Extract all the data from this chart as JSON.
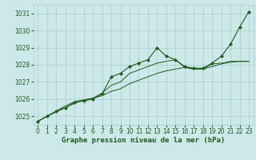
{
  "title": "Graphe pression niveau de la mer (hPa)",
  "bg_color": "#cce8e8",
  "grid_color": "#aacccc",
  "line_color": "#1e5c1e",
  "marker_color": "#1e5c1e",
  "xlim": [
    -0.5,
    23.5
  ],
  "ylim": [
    1024.5,
    1031.5
  ],
  "yticks": [
    1025,
    1026,
    1027,
    1028,
    1029,
    1030,
    1031
  ],
  "xticks": [
    0,
    1,
    2,
    3,
    4,
    5,
    6,
    7,
    8,
    9,
    10,
    11,
    12,
    13,
    14,
    15,
    16,
    17,
    18,
    19,
    20,
    21,
    22,
    23
  ],
  "series1_x": [
    0,
    1,
    2,
    3,
    4,
    5,
    6,
    7,
    8,
    9,
    10,
    11,
    12,
    13,
    14,
    15,
    16,
    17,
    18,
    19,
    20,
    21,
    22,
    23
  ],
  "series1_y": [
    1024.7,
    1025.0,
    1025.3,
    1025.5,
    1025.8,
    1025.9,
    1026.0,
    1026.3,
    1027.3,
    1027.5,
    1027.9,
    1028.1,
    1028.3,
    1029.0,
    1028.5,
    1028.3,
    1027.9,
    1027.8,
    1027.8,
    1028.1,
    1028.5,
    1029.2,
    1030.2,
    1031.1
  ],
  "series2_x": [
    0,
    1,
    2,
    3,
    4,
    5,
    6,
    7,
    8,
    9,
    10,
    11,
    12,
    13,
    14,
    15,
    16,
    17,
    18,
    19,
    20,
    21,
    22,
    23
  ],
  "series2_y": [
    1024.7,
    1025.0,
    1025.3,
    1025.6,
    1025.85,
    1025.95,
    1026.05,
    1026.35,
    1026.8,
    1027.0,
    1027.5,
    1027.7,
    1027.9,
    1028.1,
    1028.2,
    1028.3,
    1027.85,
    1027.75,
    1027.75,
    1028.05,
    1028.1,
    1028.2,
    1028.2,
    1028.2
  ],
  "series3_x": [
    0,
    1,
    2,
    3,
    4,
    5,
    6,
    7,
    8,
    9,
    10,
    11,
    12,
    13,
    14,
    15,
    16,
    17,
    18,
    19,
    20,
    21,
    22,
    23
  ],
  "series3_y": [
    1024.7,
    1025.0,
    1025.25,
    1025.5,
    1025.75,
    1025.95,
    1026.05,
    1026.2,
    1026.45,
    1026.6,
    1026.9,
    1027.1,
    1027.3,
    1027.5,
    1027.65,
    1027.75,
    1027.85,
    1027.75,
    1027.75,
    1027.9,
    1028.05,
    1028.15,
    1028.2,
    1028.2
  ],
  "ylabel_fontsize": 6,
  "xlabel_fontsize": 6.5,
  "tick_fontsize": 5.5
}
